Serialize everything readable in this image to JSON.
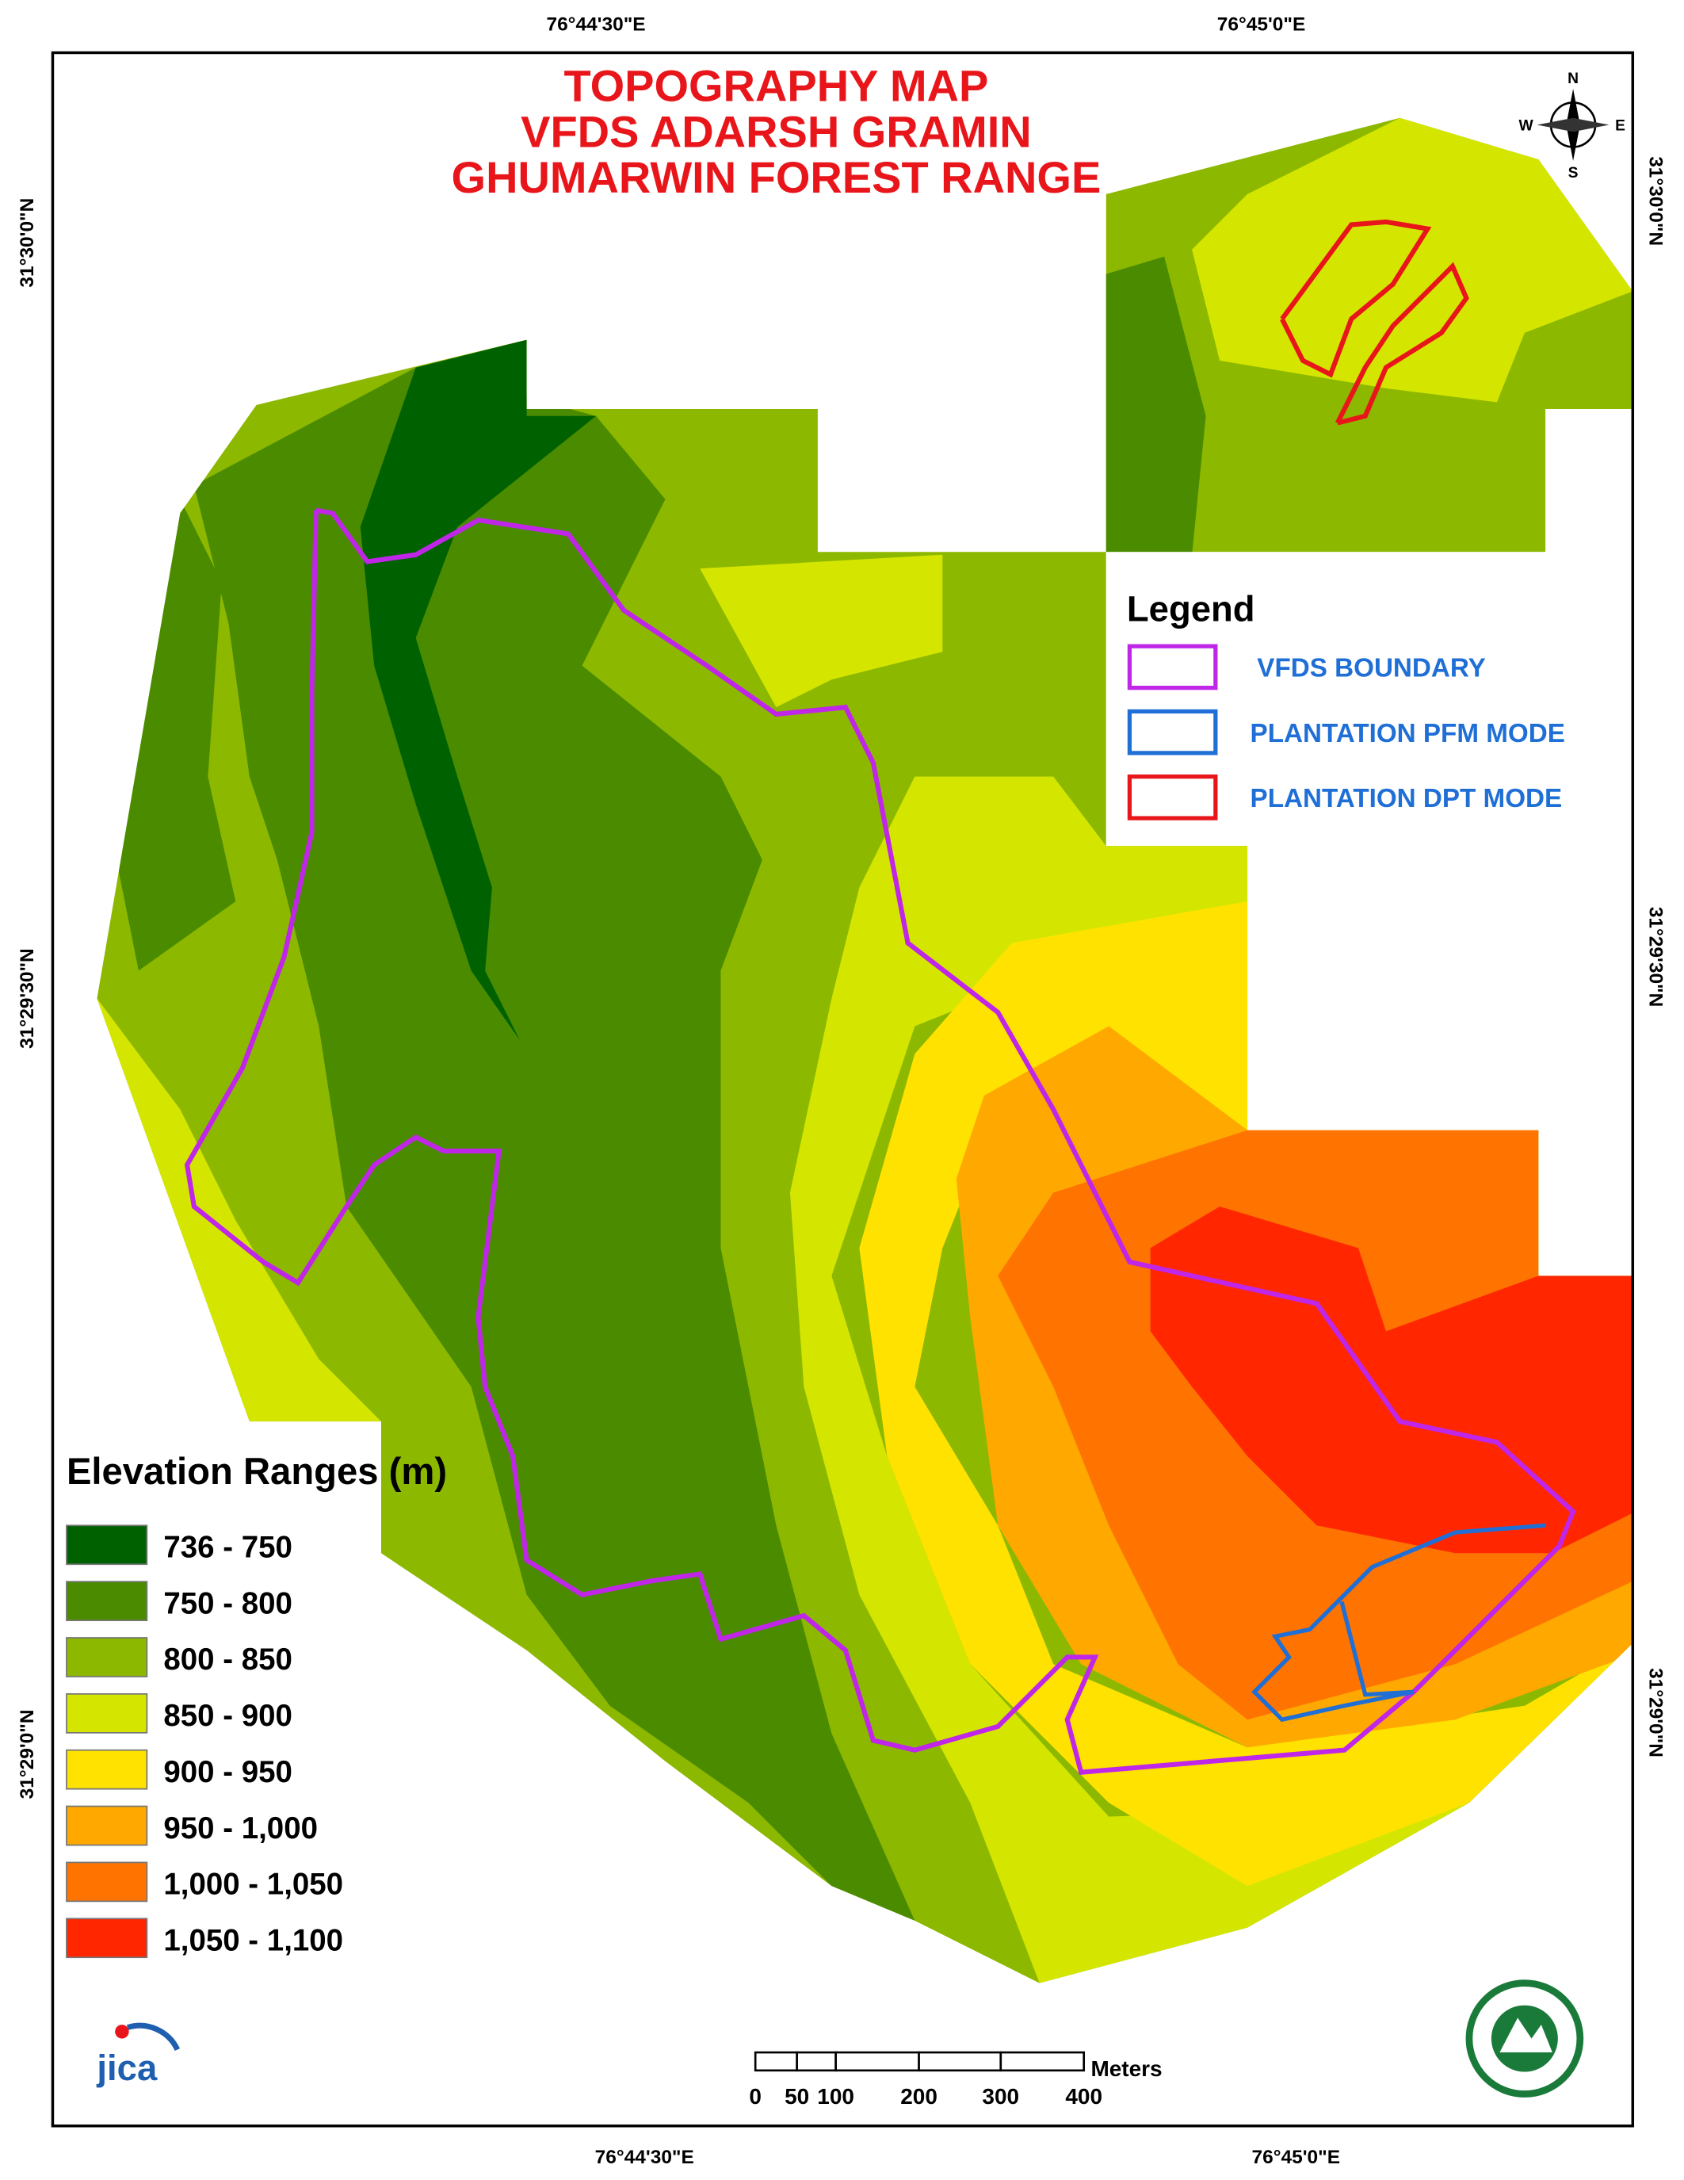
{
  "title": [
    "TOPOGRAPHY MAP",
    "VFDS ADARSH GRAMIN",
    "GHUMARWIN FOREST RANGE"
  ],
  "coordinates": {
    "top": [
      "76°44'30\"E",
      "76°45'0\"E"
    ],
    "bottom": [
      "76°44'30\"E",
      "76°45'0\"E"
    ],
    "left": [
      "31°30'0\"N",
      "31°29'30\"N",
      "31°29'0\"N"
    ],
    "right": [
      "31°30'0\"N",
      "31°29'30\"N",
      "31°29'0\"N"
    ]
  },
  "compass": {
    "n": "N",
    "e": "E",
    "s": "S",
    "w": "W"
  },
  "legend": {
    "title": "Legend",
    "items": [
      {
        "label": "VFDS BOUNDARY",
        "color": "#c026e8"
      },
      {
        "label": "PLANTATION PFM MODE",
        "color": "#1f6fd6"
      },
      {
        "label": "PLANTATION DPT MODE",
        "color": "#e8161b"
      }
    ]
  },
  "elevation": {
    "title": "Elevation Ranges (m)",
    "classes": [
      {
        "label": "736 - 750",
        "color": "#006100"
      },
      {
        "label": "750 - 800",
        "color": "#4a8b00"
      },
      {
        "label": "800 - 850",
        "color": "#8db800"
      },
      {
        "label": "850 - 900",
        "color": "#d4e600"
      },
      {
        "label": "900 - 950",
        "color": "#ffe200"
      },
      {
        "label": "950 - 1,000",
        "color": "#ffa800"
      },
      {
        "label": "1,000 - 1,050",
        "color": "#ff7300"
      },
      {
        "label": "1,050 - 1,100",
        "color": "#ff2600"
      }
    ]
  },
  "scale_bar": {
    "labels": [
      "0",
      "50",
      "100",
      "200",
      "300",
      "400"
    ],
    "unit": "Meters"
  },
  "logo": "jica"
}
